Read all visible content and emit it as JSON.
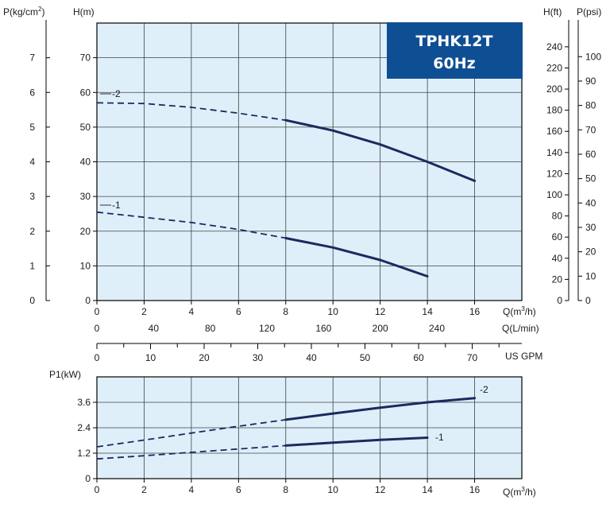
{
  "colors": {
    "plot_bg": "#dfeffa",
    "grid": "#404040",
    "curve": "#1c2a5e",
    "title_box": "#0e4f94",
    "title_text": "#ffffff"
  },
  "title": {
    "line1": "TPHK12T",
    "line2": "60Hz"
  },
  "chart_data": [
    {
      "type": "line",
      "name": "head",
      "xlabel": "Q(m3/h)",
      "ylabel": "H(m)",
      "xlim": [
        0,
        18
      ],
      "ylim": [
        0,
        80
      ],
      "x_ticks": [
        0,
        2,
        4,
        6,
        8,
        10,
        12,
        14,
        16
      ],
      "y_ticks": [
        0,
        10,
        20,
        30,
        40,
        50,
        60,
        70
      ],
      "grid": true,
      "solid_from_x": 8,
      "series": [
        {
          "name": "-2",
          "x": [
            0,
            2,
            4,
            6,
            8,
            10,
            12,
            14,
            16
          ],
          "y": [
            57,
            56.8,
            55.7,
            54,
            52,
            49,
            45,
            40,
            34.5
          ]
        },
        {
          "name": "-1",
          "x": [
            0,
            2,
            4,
            6,
            8,
            10,
            12,
            14
          ],
          "y": [
            25.5,
            24,
            22.5,
            20.5,
            18,
            15.3,
            11.7,
            7
          ]
        }
      ],
      "left_axis": {
        "label": "P(kg/cm2)",
        "ticks": [
          0,
          1,
          2,
          3,
          4,
          5,
          6,
          7
        ]
      },
      "right_axes": [
        {
          "label": "H(ft)",
          "ticks": [
            0,
            20,
            40,
            60,
            80,
            100,
            120,
            140,
            160,
            180,
            200,
            220,
            240
          ]
        },
        {
          "label": "P(psi)",
          "ticks": [
            0,
            10,
            20,
            30,
            40,
            50,
            60,
            70,
            80,
            90,
            100
          ]
        }
      ],
      "extra_x_axes": [
        {
          "label": "Q(L/min)",
          "ticks": [
            0,
            40,
            80,
            120,
            160,
            200,
            240
          ]
        },
        {
          "label": "US GPM",
          "ticks": [
            0,
            10,
            20,
            30,
            40,
            50,
            60,
            70
          ]
        }
      ]
    },
    {
      "type": "line",
      "name": "power",
      "xlabel": "Q(m3/h)",
      "ylabel": "P1(kW)",
      "xlim": [
        0,
        18
      ],
      "ylim": [
        0,
        4.8
      ],
      "x_ticks": [
        0,
        2,
        4,
        6,
        8,
        10,
        12,
        14,
        16
      ],
      "y_ticks": [
        0,
        1.2,
        2.4,
        3.6
      ],
      "y_tick_labels": [
        "0",
        "1.2",
        "2.4",
        "3.6"
      ],
      "grid": true,
      "solid_from_x": 8,
      "series": [
        {
          "name": "-2",
          "x": [
            0,
            2,
            4,
            6,
            8,
            10,
            12,
            14,
            16
          ],
          "y": [
            1.5,
            1.82,
            2.15,
            2.47,
            2.78,
            3.07,
            3.35,
            3.6,
            3.8
          ]
        },
        {
          "name": "-1",
          "x": [
            0,
            2,
            4,
            6,
            8,
            10,
            12,
            14
          ],
          "y": [
            0.93,
            1.08,
            1.24,
            1.4,
            1.56,
            1.7,
            1.83,
            1.93
          ]
        }
      ]
    }
  ]
}
